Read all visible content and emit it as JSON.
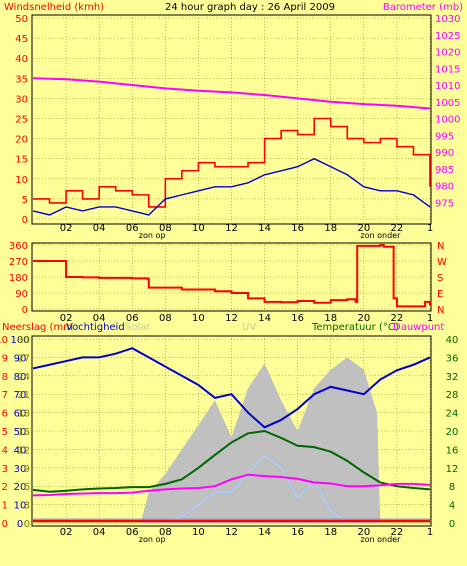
{
  "header": {
    "left": "Windsnelheid (kmh)",
    "center": "24 hour graph day : 26 April 2009",
    "right": "Barometer (mb)"
  },
  "panel3": {
    "neerslag": "Neerslag (mm",
    "vochtigheid": "Vochtigheid",
    "solar": "Solar",
    "uv": "UV",
    "temperatuur": "Temperatuur (°C)",
    "dauwpunt": "Dauwpunt"
  },
  "colors": {
    "background": "#ffff99",
    "wind_gust": "#ff0000",
    "wind_avg": "#0000cc",
    "barometer": "#ff00ff",
    "direction": "#ff0000",
    "humidity": "#0000cc",
    "temperature": "#006600",
    "dewpoint": "#ff00ff",
    "solar": "#c0c0c0",
    "uv": "#aaccff",
    "rain": "#ff0000",
    "grid": "#808000",
    "left_axis": "#ff0000",
    "right_axis": "#ff00ff"
  },
  "chart_data": [
    {
      "type": "line",
      "x_ticks": [
        "02",
        "04",
        "06",
        "08",
        "10",
        "12",
        "14",
        "16",
        "18",
        "20",
        "22",
        "1"
      ],
      "x_range_hours": [
        0,
        24
      ],
      "axis_annotations": [
        "zon op",
        "zon onder"
      ],
      "sunrise_hour": 7.2,
      "sunset_hour": 21.0,
      "left_axis": {
        "label": "Windsnelheid (kmh)",
        "range": [
          0,
          50
        ],
        "ticks": [
          0,
          5,
          10,
          15,
          20,
          25,
          30,
          35,
          40,
          45,
          50
        ]
      },
      "right_axis": {
        "label": "Barometer (mb)",
        "range": [
          970,
          1030
        ],
        "ticks": [
          975,
          980,
          985,
          990,
          995,
          1000,
          1005,
          1010,
          1015,
          1020,
          1025,
          1030
        ]
      },
      "series": [
        {
          "axis": "right",
          "x": [
            0,
            2,
            4,
            6,
            8,
            10,
            12,
            14,
            16,
            18,
            20,
            22,
            24
          ],
          "values": [
            1012,
            1011.7,
            1011,
            1010,
            1009,
            1008.3,
            1007.8,
            1007,
            1006,
            1005,
            1004.3,
            1003.8,
            1003
          ]
        },
        {
          "axis": "left",
          "x": [
            0,
            1,
            2,
            3,
            4,
            5,
            6,
            7,
            8,
            9,
            10,
            11,
            12,
            13,
            14,
            15,
            16,
            17,
            18,
            19,
            20,
            21,
            22,
            23,
            24
          ],
          "values": [
            5,
            4,
            7,
            5,
            8,
            7,
            6,
            3,
            10,
            12,
            14,
            13,
            13,
            14,
            20,
            22,
            21,
            25,
            23,
            20,
            19,
            20,
            18,
            16,
            8
          ]
        },
        {
          "axis": "left",
          "x": [
            0,
            1,
            2,
            3,
            4,
            5,
            6,
            7,
            8,
            9,
            10,
            11,
            12,
            13,
            14,
            15,
            16,
            17,
            18,
            19,
            20,
            21,
            22,
            23,
            24
          ],
          "values": [
            2,
            1,
            3,
            2,
            3,
            3,
            2,
            1,
            5,
            6,
            7,
            8,
            8,
            9,
            11,
            12,
            13,
            15,
            13,
            11,
            8,
            7,
            7,
            6,
            3
          ]
        }
      ]
    },
    {
      "type": "line",
      "x_ticks": [
        "02",
        "04",
        "06",
        "08",
        "10",
        "12",
        "14",
        "16",
        "18",
        "20",
        "22",
        "1"
      ],
      "x_range_hours": [
        0,
        24
      ],
      "left_axis": {
        "range": [
          0,
          360
        ],
        "ticks": [
          0,
          90,
          180,
          270,
          360
        ]
      },
      "right_axis": {
        "ticks": [
          "N",
          "W",
          "S",
          "E",
          "N"
        ]
      },
      "series": [
        {
          "axis": "left",
          "x": [
            0,
            1.8,
            2,
            3,
            4,
            5,
            6,
            6.9,
            7,
            9,
            11,
            12,
            13,
            14,
            15,
            16,
            17,
            18,
            19,
            19.5,
            19.6,
            21,
            21.2,
            21.8,
            22,
            23,
            23.7,
            24
          ],
          "values": [
            270,
            270,
            180,
            178,
            175,
            175,
            172,
            170,
            120,
            110,
            100,
            90,
            60,
            40,
            38,
            45,
            35,
            50,
            55,
            40,
            355,
            360,
            350,
            60,
            15,
            15,
            40,
            20
          ]
        }
      ]
    },
    {
      "type": "line",
      "x_ticks": [
        "02",
        "04",
        "06",
        "08",
        "10",
        "12",
        "14",
        "16",
        "18",
        "20",
        "22",
        "1"
      ],
      "x_range_hours": [
        0,
        24
      ],
      "axis_annotations": [
        "zon op",
        "zon onder"
      ],
      "sunrise_hour": 7.2,
      "sunset_hour": 21.0,
      "left_axis_rain": {
        "label": "Neerslag (mm",
        "ticks": [
          0,
          1,
          2,
          3,
          4,
          5,
          6,
          7,
          8,
          9,
          10
        ]
      },
      "left_axis_humidity": {
        "label": "Vochtigheid",
        "range": [
          0,
          100
        ],
        "ticks": [
          0,
          10,
          20,
          30,
          40,
          50,
          60,
          70,
          80,
          90,
          100
        ]
      },
      "left_axis_solar": {
        "ticks": [
          0,
          3,
          6,
          9,
          12,
          15,
          18,
          21,
          24,
          27,
          30
        ]
      },
      "right_axis": {
        "label": "Temperatuur (°C)",
        "range": [
          0,
          40
        ],
        "ticks": [
          0,
          4,
          8,
          12,
          16,
          20,
          24,
          28,
          32,
          36,
          40
        ]
      },
      "series": [
        {
          "axis": "left_humidity",
          "x": [
            0,
            1,
            2,
            3,
            4,
            5,
            6,
            7,
            8,
            9,
            10,
            11,
            12,
            13,
            14,
            15,
            16,
            17,
            18,
            19,
            20,
            21,
            22,
            23,
            24
          ],
          "values": [
            84,
            86,
            88,
            90,
            90,
            92,
            95,
            90,
            85,
            80,
            75,
            68,
            70,
            60,
            52,
            56,
            62,
            70,
            74,
            72,
            70,
            78,
            83,
            86,
            90
          ]
        },
        {
          "axis": "right",
          "x": [
            0,
            1,
            2,
            3,
            4,
            5,
            6,
            7,
            8,
            9,
            10,
            11,
            12,
            13,
            14,
            15,
            16,
            17,
            18,
            19,
            20,
            21,
            22,
            23,
            24
          ],
          "values": [
            7.2,
            6.8,
            7,
            7.3,
            7.5,
            7.6,
            7.8,
            7.8,
            8.5,
            9.5,
            12,
            14.8,
            17.5,
            19.5,
            20,
            18.5,
            16.8,
            16.5,
            15.5,
            13.5,
            11,
            8.8,
            8,
            7.6,
            7.3
          ]
        },
        {
          "axis": "right",
          "x": [
            0,
            1,
            2,
            3,
            4,
            5,
            6,
            7,
            8,
            9,
            10,
            11,
            12,
            13,
            14,
            15,
            16,
            17,
            18,
            19,
            20,
            21,
            22,
            23,
            24
          ],
          "values": [
            6,
            6.1,
            6.3,
            6.4,
            6.5,
            6.5,
            6.6,
            7,
            7.3,
            7.5,
            7.6,
            8,
            9.5,
            10.5,
            10.2,
            10,
            9.6,
            8.8,
            8.6,
            8,
            8,
            8.2,
            8.5,
            8.5,
            8.3
          ]
        },
        {
          "axis": "left_solar",
          "x": [
            6.5,
            7,
            8,
            9,
            10,
            11,
            12,
            13,
            14,
            15,
            16,
            17,
            18,
            19,
            20,
            20.8,
            21
          ],
          "values": [
            0,
            5,
            8,
            12,
            16,
            20,
            14,
            22,
            26,
            20,
            15,
            22,
            25,
            27,
            25,
            18,
            0
          ]
        },
        {
          "axis": "left_solar",
          "x": [
            7.5,
            9,
            10,
            11,
            12,
            13,
            14,
            15,
            16,
            17,
            18,
            19
          ],
          "values": [
            0,
            1,
            3,
            5,
            5,
            8,
            11,
            9,
            4,
            7,
            2,
            0
          ]
        },
        {
          "axis": "left_rain",
          "x": [
            0,
            24
          ],
          "values": [
            0,
            0
          ]
        }
      ]
    }
  ]
}
